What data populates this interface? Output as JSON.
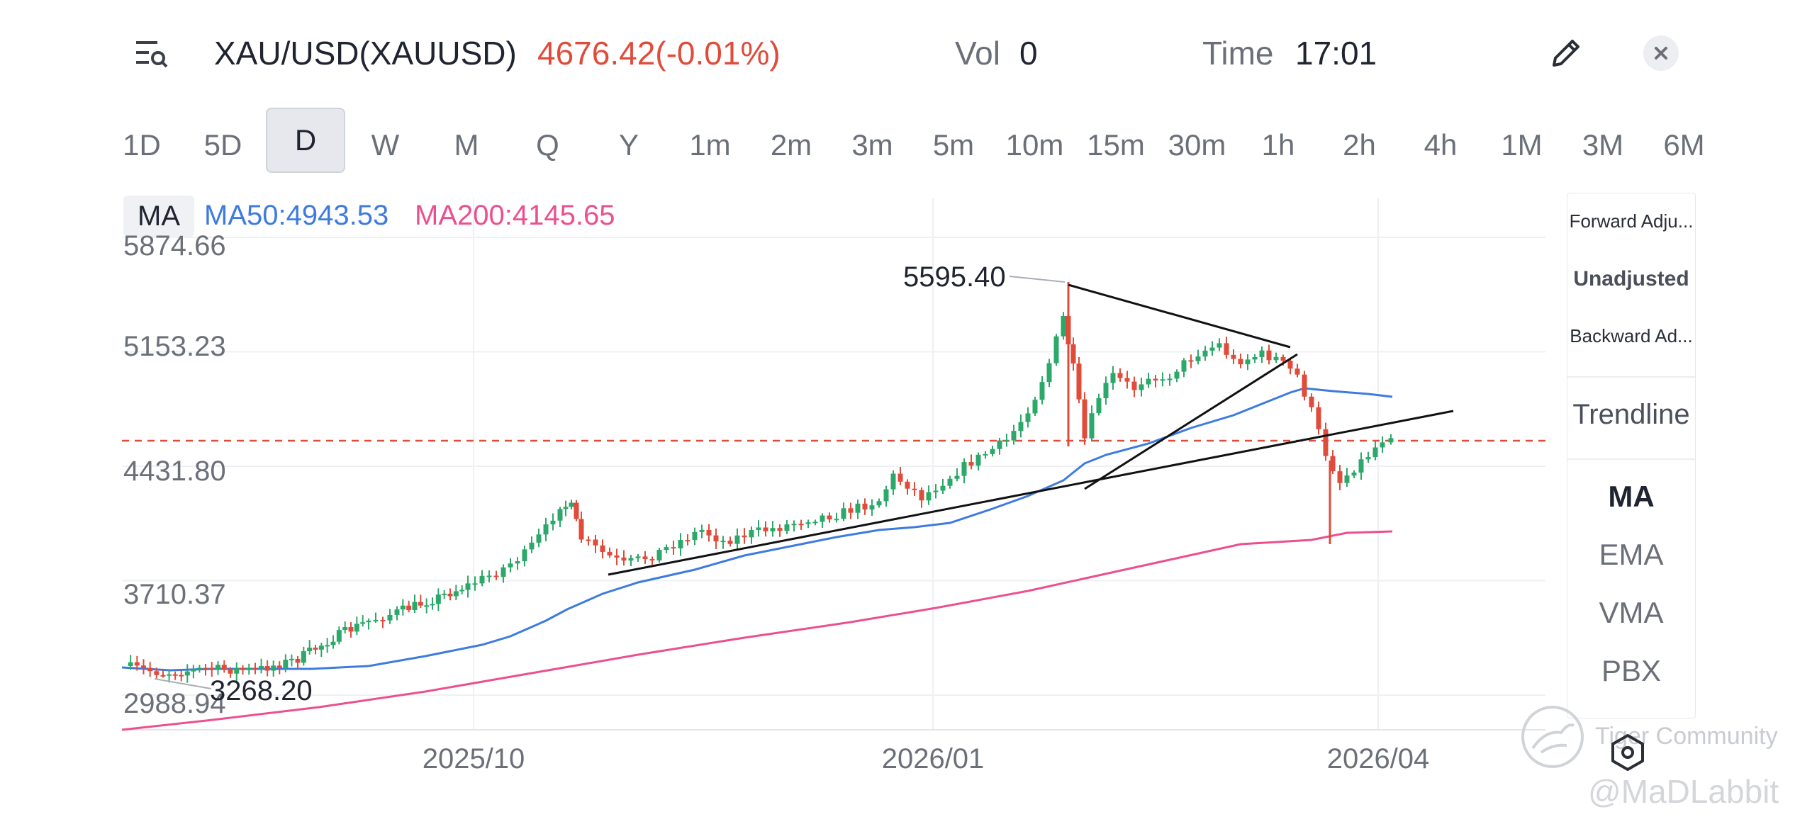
{
  "header": {
    "symbol": "XAU/USD(XAUUSD)",
    "price_change": "4676.42(-0.01%)",
    "vol_label": "Vol",
    "vol_value": "0",
    "time_label": "Time",
    "time_value": "17:01",
    "icons": [
      "menu-search-icon",
      "edit-pencil-icon",
      "close-icon"
    ]
  },
  "periods": {
    "items": [
      "1D",
      "5D",
      "D",
      "W",
      "M",
      "Q",
      "Y",
      "1m",
      "2m",
      "3m",
      "5m",
      "10m",
      "15m",
      "30m",
      "1h",
      "2h",
      "4h",
      "1M",
      "3M",
      "6M"
    ],
    "active": "D"
  },
  "indicators": {
    "badge": "MA",
    "ma50": "MA50:4943.53",
    "ma200": "MA200:4145.65",
    "ma50_color": "#3d7be0",
    "ma200_color": "#ec4f8f"
  },
  "right_panel": {
    "adjust": [
      "Forward Adju...",
      "Unadjusted",
      "Backward Ad..."
    ],
    "adjust_selected": "Unadjusted",
    "trendline": "Trendline",
    "indicators": [
      "MA",
      "EMA",
      "VMA",
      "PBX"
    ],
    "indicator_selected": "MA"
  },
  "watermark": {
    "brand": "Tiger Community",
    "user": "@MaDLabbit"
  },
  "chart_data": {
    "type": "candlestick",
    "y_ticks": [
      "5874.66",
      "5153.23",
      "4431.80",
      "3710.37",
      "2988.94"
    ],
    "x_ticks": [
      "2025/10",
      "2026/01",
      "2026/04"
    ],
    "annotations": {
      "high": "5595.40",
      "low": "3268.20"
    },
    "last_price": 4676.42,
    "current_price_line": "dashed",
    "up_color": "#2ca86a",
    "down_color": "#e04b3a"
  }
}
